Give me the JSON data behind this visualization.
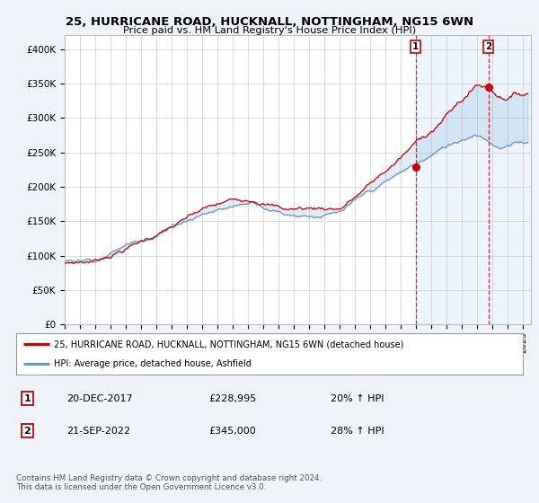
{
  "title": "25, HURRICANE ROAD, HUCKNALL, NOTTINGHAM, NG15 6WN",
  "subtitle": "Price paid vs. HM Land Registry's House Price Index (HPI)",
  "xlim_start": 1995.0,
  "xlim_end": 2025.5,
  "ylim": [
    0,
    420000
  ],
  "yticks": [
    0,
    50000,
    100000,
    150000,
    200000,
    250000,
    300000,
    350000,
    400000
  ],
  "xtick_years": [
    1995,
    1996,
    1997,
    1998,
    1999,
    2000,
    2001,
    2002,
    2003,
    2004,
    2005,
    2006,
    2007,
    2008,
    2009,
    2010,
    2011,
    2012,
    2013,
    2014,
    2015,
    2016,
    2017,
    2018,
    2019,
    2020,
    2021,
    2022,
    2023,
    2024,
    2025
  ],
  "red_color": "#cc0000",
  "blue_color": "#6699cc",
  "vline1_x": 2017.97,
  "vline2_x": 2022.72,
  "marker1_x": 2017.97,
  "marker1_y": 228995,
  "marker2_x": 2022.72,
  "marker2_y": 345000,
  "legend_label_red": "25, HURRICANE ROAD, HUCKNALL, NOTTINGHAM, NG15 6WN (detached house)",
  "legend_label_blue": "HPI: Average price, detached house, Ashfield",
  "note1_num": "1",
  "note1_date": "20-DEC-2017",
  "note1_price": "£228,995",
  "note1_hpi": "20% ↑ HPI",
  "note2_num": "2",
  "note2_date": "21-SEP-2022",
  "note2_price": "£345,000",
  "note2_hpi": "28% ↑ HPI",
  "footer": "Contains HM Land Registry data © Crown copyright and database right 2024.\nThis data is licensed under the Open Government Licence v3.0.",
  "background_color": "#f0f4fa",
  "plot_bg_color": "#ffffff",
  "shade_color": "#ddeeff"
}
